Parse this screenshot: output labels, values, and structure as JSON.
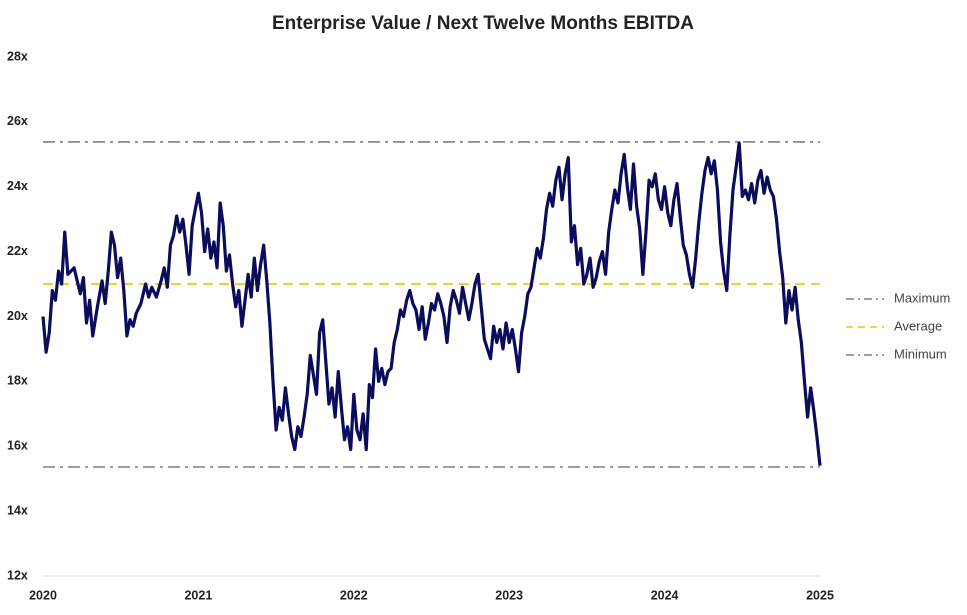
{
  "chart_data": {
    "type": "line",
    "title": "Enterprise Value / Next Twelve Months EBITDA",
    "xlim": [
      2020,
      2025
    ],
    "xticks": [
      2020,
      2021,
      2022,
      2023,
      2024,
      2025
    ],
    "ylim": [
      12,
      28
    ],
    "yticks": [
      {
        "value": 12,
        "label": "12x"
      },
      {
        "value": 14,
        "label": "14x"
      },
      {
        "value": 16,
        "label": "16x"
      },
      {
        "value": 18,
        "label": "18x"
      },
      {
        "value": 20,
        "label": "20x"
      },
      {
        "value": 22,
        "label": "22x"
      },
      {
        "value": 24,
        "label": "24x"
      },
      {
        "value": 26,
        "label": "26x"
      },
      {
        "value": 28,
        "label": "28x"
      }
    ],
    "x": [
      2020.0,
      2020.02,
      2020.04,
      2020.06,
      2020.08,
      2020.1,
      2020.12,
      2020.14,
      2020.16,
      2020.2,
      2020.24,
      2020.26,
      2020.28,
      2020.3,
      2020.32,
      2020.35,
      2020.38,
      2020.4,
      2020.42,
      2020.44,
      2020.46,
      2020.48,
      2020.5,
      2020.52,
      2020.54,
      2020.56,
      2020.58,
      2020.6,
      2020.63,
      2020.66,
      2020.68,
      2020.7,
      2020.73,
      2020.76,
      2020.78,
      2020.8,
      2020.82,
      2020.84,
      2020.86,
      2020.88,
      2020.9,
      2020.92,
      2020.94,
      2020.96,
      2020.98,
      2021.0,
      2021.02,
      2021.04,
      2021.06,
      2021.08,
      2021.1,
      2021.12,
      2021.14,
      2021.16,
      2021.18,
      2021.2,
      2021.22,
      2021.24,
      2021.26,
      2021.28,
      2021.3,
      2021.32,
      2021.34,
      2021.36,
      2021.38,
      2021.4,
      2021.42,
      2021.44,
      2021.46,
      2021.48,
      2021.5,
      2021.52,
      2021.54,
      2021.56,
      2021.58,
      2021.6,
      2021.62,
      2021.64,
      2021.66,
      2021.68,
      2021.7,
      2021.72,
      2021.74,
      2021.76,
      2021.78,
      2021.8,
      2021.82,
      2021.84,
      2021.86,
      2021.88,
      2021.9,
      2021.92,
      2021.94,
      2021.96,
      2021.98,
      2022.0,
      2022.02,
      2022.04,
      2022.06,
      2022.08,
      2022.1,
      2022.12,
      2022.14,
      2022.16,
      2022.18,
      2022.2,
      2022.22,
      2022.24,
      2022.26,
      2022.28,
      2022.3,
      2022.32,
      2022.34,
      2022.36,
      2022.38,
      2022.4,
      2022.42,
      2022.44,
      2022.46,
      2022.48,
      2022.5,
      2022.52,
      2022.54,
      2022.56,
      2022.58,
      2022.6,
      2022.62,
      2022.64,
      2022.66,
      2022.68,
      2022.7,
      2022.72,
      2022.74,
      2022.76,
      2022.78,
      2022.8,
      2022.82,
      2022.84,
      2022.86,
      2022.88,
      2022.9,
      2022.92,
      2022.94,
      2022.96,
      2022.98,
      2023.0,
      2023.02,
      2023.04,
      2023.06,
      2023.08,
      2023.1,
      2023.12,
      2023.14,
      2023.16,
      2023.18,
      2023.2,
      2023.22,
      2023.24,
      2023.26,
      2023.28,
      2023.3,
      2023.32,
      2023.34,
      2023.36,
      2023.38,
      2023.4,
      2023.42,
      2023.44,
      2023.46,
      2023.48,
      2023.5,
      2023.52,
      2023.54,
      2023.56,
      2023.58,
      2023.6,
      2023.62,
      2023.64,
      2023.66,
      2023.68,
      2023.7,
      2023.72,
      2023.74,
      2023.76,
      2023.78,
      2023.8,
      2023.82,
      2023.84,
      2023.86,
      2023.88,
      2023.9,
      2023.92,
      2023.94,
      2023.96,
      2023.98,
      2024.0,
      2024.02,
      2024.04,
      2024.06,
      2024.08,
      2024.1,
      2024.12,
      2024.14,
      2024.16,
      2024.18,
      2024.2,
      2024.22,
      2024.24,
      2024.26,
      2024.28,
      2024.3,
      2024.32,
      2024.34,
      2024.36,
      2024.38,
      2024.4,
      2024.42,
      2024.44,
      2024.46,
      2024.48,
      2024.5,
      2024.52,
      2024.54,
      2024.56,
      2024.58,
      2024.6,
      2024.62,
      2024.64,
      2024.66,
      2024.68,
      2024.7,
      2024.72,
      2024.74,
      2024.76,
      2024.78,
      2024.8,
      2024.82,
      2024.84,
      2024.86,
      2024.88,
      2024.9,
      2024.92,
      2024.94,
      2024.96,
      2024.98,
      2025.0
    ],
    "series": [
      {
        "color": "#0c0c5c",
        "values": [
          20.0,
          18.9,
          19.5,
          20.8,
          20.5,
          21.4,
          21.0,
          22.6,
          21.3,
          21.5,
          20.7,
          21.2,
          19.8,
          20.5,
          19.4,
          20.3,
          21.1,
          20.4,
          21.4,
          22.6,
          22.2,
          21.2,
          21.8,
          20.8,
          19.4,
          19.9,
          19.7,
          20.1,
          20.4,
          21.0,
          20.6,
          20.9,
          20.6,
          21.1,
          21.5,
          20.9,
          22.2,
          22.5,
          23.1,
          22.6,
          23.0,
          22.2,
          21.3,
          22.8,
          23.3,
          23.8,
          23.2,
          22.0,
          22.7,
          21.8,
          22.3,
          21.5,
          23.5,
          22.8,
          21.4,
          21.9,
          21.0,
          20.3,
          20.8,
          19.7,
          20.5,
          21.3,
          20.6,
          21.8,
          20.8,
          21.6,
          22.2,
          21.1,
          19.8,
          18.0,
          16.5,
          17.2,
          16.8,
          17.8,
          17.0,
          16.3,
          15.9,
          16.6,
          16.3,
          16.9,
          17.6,
          18.8,
          18.2,
          17.6,
          19.5,
          19.9,
          18.6,
          17.3,
          17.8,
          16.9,
          18.3,
          17.2,
          16.2,
          16.6,
          15.9,
          17.6,
          16.5,
          16.2,
          17.0,
          15.9,
          17.9,
          17.5,
          19.0,
          18.0,
          18.4,
          17.9,
          18.3,
          18.4,
          19.2,
          19.6,
          20.2,
          20.0,
          20.5,
          20.8,
          20.4,
          20.2,
          19.6,
          20.3,
          19.3,
          19.8,
          20.4,
          20.2,
          20.7,
          20.4,
          20.0,
          19.2,
          20.3,
          20.8,
          20.5,
          20.1,
          20.9,
          20.4,
          19.9,
          20.4,
          21.0,
          21.3,
          20.3,
          19.3,
          19.0,
          18.7,
          19.7,
          19.2,
          19.6,
          19.0,
          19.8,
          19.2,
          19.6,
          19.0,
          18.3,
          19.5,
          20.0,
          20.7,
          20.9,
          21.5,
          22.1,
          21.8,
          22.4,
          23.3,
          23.8,
          23.4,
          24.2,
          24.6,
          23.6,
          24.4,
          24.9,
          22.3,
          22.8,
          21.6,
          22.1,
          21.0,
          21.3,
          21.8,
          20.9,
          21.2,
          21.7,
          22.0,
          21.3,
          22.6,
          23.3,
          23.9,
          23.5,
          24.4,
          25.0,
          24.0,
          23.3,
          24.7,
          23.4,
          22.7,
          21.3,
          22.6,
          24.2,
          24.0,
          24.4,
          23.6,
          23.3,
          24.0,
          23.2,
          22.8,
          23.6,
          24.1,
          23.1,
          22.2,
          21.9,
          21.3,
          20.9,
          21.8,
          22.9,
          23.8,
          24.5,
          24.9,
          24.4,
          24.8,
          23.9,
          22.3,
          21.4,
          20.8,
          22.5,
          23.9,
          24.6,
          25.35,
          23.7,
          23.9,
          23.6,
          24.1,
          23.5,
          24.2,
          24.5,
          23.8,
          24.3,
          23.9,
          23.7,
          23.0,
          22.0,
          21.2,
          19.8,
          20.8,
          20.2,
          20.9,
          19.9,
          19.2,
          18.0,
          16.9,
          17.8,
          17.1,
          16.3,
          15.4
        ]
      }
    ],
    "reference_lines": [
      {
        "name": "Maximum",
        "value": 25.38,
        "color": "#7f7f7f"
      },
      {
        "name": "Average",
        "value": 21.0,
        "color": "#e8c21a"
      },
      {
        "name": "Minimum",
        "value": 15.36,
        "color": "#7f7f7f"
      }
    ]
  }
}
